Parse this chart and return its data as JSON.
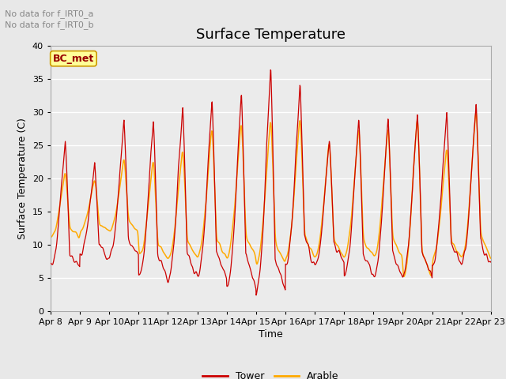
{
  "title": "Surface Temperature",
  "xlabel": "Time",
  "ylabel": "Surface Temperature (C)",
  "ylim": [
    0,
    40
  ],
  "yticks": [
    0,
    5,
    10,
    15,
    20,
    25,
    30,
    35,
    40
  ],
  "x_tick_labels": [
    "Apr 8",
    "Apr 9",
    "Apr 10",
    "Apr 11",
    "Apr 12",
    "Apr 13",
    "Apr 14",
    "Apr 15",
    "Apr 16",
    "Apr 17",
    "Apr 18",
    "Apr 19",
    "Apr 20",
    "Apr 21",
    "Apr 22",
    "Apr 23"
  ],
  "tower_color": "#cc0000",
  "arable_color": "#ffaa00",
  "bc_met_color": "#ffff99",
  "bc_met_border": "#cc9900",
  "no_data_text_color": "#888888",
  "fig_bg_color": "#e8e8e8",
  "plot_bg_color": "#ebebeb",
  "grid_color": "#ffffff",
  "title_fontsize": 13,
  "label_fontsize": 9,
  "tick_fontsize": 8,
  "annotation_fontsize": 9,
  "legend_fontsize": 9,
  "n_days": 15,
  "pts_per_day": 96
}
